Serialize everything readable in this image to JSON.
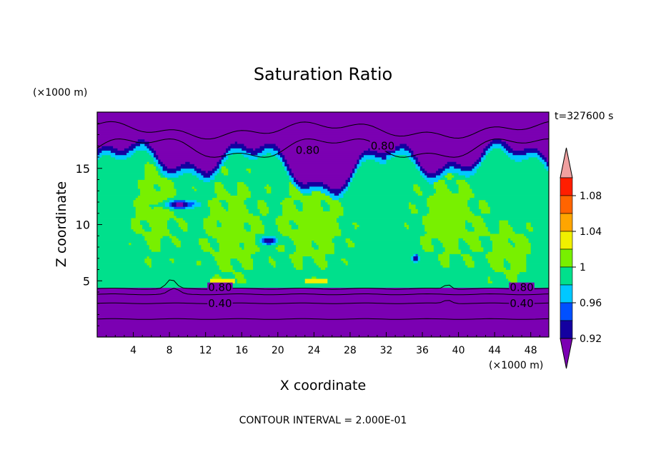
{
  "chart_data": {
    "type": "heatmap",
    "title": "Saturation Ratio",
    "xlabel": "X coordinate",
    "ylabel": "Z coordinate",
    "x_unit": "(×1000 m)",
    "y_unit": "(×1000 m)",
    "time_label": "t=327600 s",
    "footer": "CONTOUR INTERVAL = 2.000E-01",
    "xlim": [
      0,
      50
    ],
    "ylim": [
      0,
      20
    ],
    "x_ticks": [
      4,
      8,
      12,
      16,
      20,
      24,
      28,
      32,
      36,
      40,
      44,
      48
    ],
    "y_ticks": [
      5,
      10,
      15
    ],
    "contour_labels": [
      {
        "text": "0.80",
        "x": 13.6,
        "z": 4.4
      },
      {
        "text": "0.40",
        "x": 13.6,
        "z": 3.0
      },
      {
        "text": "0.80",
        "x": 47.0,
        "z": 4.4
      },
      {
        "text": "0.40",
        "x": 47.0,
        "z": 3.0
      },
      {
        "text": "0.80",
        "x": 23.3,
        "z": 16.6
      },
      {
        "text": "0.80",
        "x": 31.6,
        "z": 17.0
      }
    ],
    "colorbar": {
      "labels": [
        "1.08",
        "1.04",
        "1",
        "0.96",
        "0.92"
      ],
      "levels": [
        0.9,
        0.92,
        0.94,
        0.96,
        0.98,
        1.0,
        1.02,
        1.04,
        1.06,
        1.08,
        1.1
      ],
      "colors": [
        "#7B00B2",
        "#1400A0",
        "#0050FF",
        "#00C8FF",
        "#00E08C",
        "#78F000",
        "#F0F000",
        "#FFA500",
        "#FF6400",
        "#FF1E00",
        "#F0A0A0"
      ],
      "under_color": "#7B00B2",
      "over_color": "#F0A0A0"
    },
    "grid": false
  }
}
